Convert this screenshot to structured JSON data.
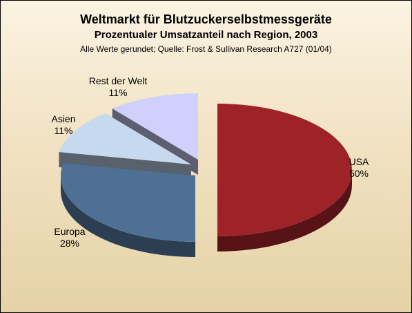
{
  "chart_data": {
    "type": "pie",
    "title": "Weltmarkt für Blutzuckerselbstmessgeräte",
    "subtitle": "Prozentualer Umsatzanteil nach Region, 2003",
    "note": "Alle Werte gerundet; Quelle: Frost & Sullivan Research A727 (01/04)",
    "slices": [
      {
        "name": "USA",
        "value": 50,
        "label": "50%",
        "color": "#9e2328"
      },
      {
        "name": "Europa",
        "value": 28,
        "label": "28%",
        "color": "#4f7095"
      },
      {
        "name": "Asien",
        "value": 11,
        "label": "11%",
        "color": "#c6d9ef"
      },
      {
        "name": "Rest der Welt",
        "value": 11,
        "label": "11%",
        "color": "#cfd0fb"
      }
    ]
  }
}
